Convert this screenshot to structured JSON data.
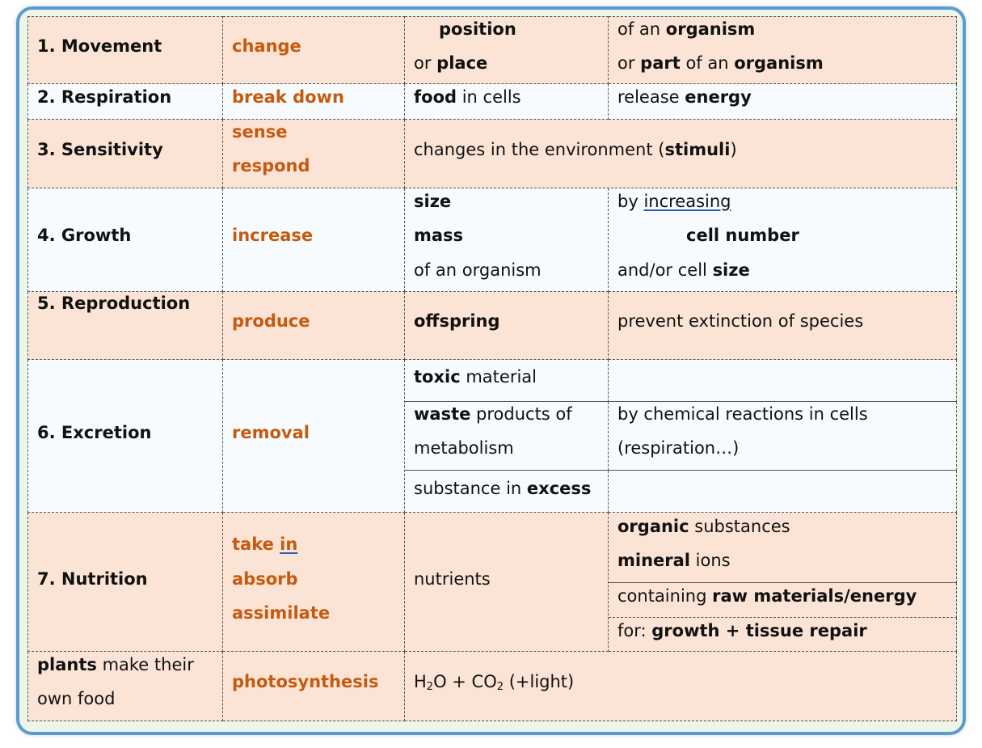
{
  "rows": [
    {
      "name": "1. Movement",
      "verb": "change",
      "c3_l1": "position",
      "c3_l2_pre": "or ",
      "c3_l2_b": "place",
      "c4_l1_pre": "of an ",
      "c4_l1_b": "organism",
      "c4_l2_pre": "or ",
      "c4_l2_b1": "part",
      "c4_l2_mid": " of an ",
      "c4_l2_b2": "organism"
    },
    {
      "name": "2. Respiration",
      "verb": "break down",
      "c3_b": "food",
      "c3_rest": " in cells",
      "c4_pre": "release ",
      "c4_b": "energy"
    },
    {
      "name": "3. Sensitivity",
      "verb1": "sense",
      "verb2": "respond",
      "c3_pre": "changes in the environment (",
      "c3_b": "stimuli",
      "c3_post": ")"
    },
    {
      "name": "4. Growth",
      "verb": "increase",
      "c3_l1": "size",
      "c3_l2": "mass",
      "c3_l3": "of an organism",
      "c4_l1_pre": "by ",
      "c4_l1_u": "increasing",
      "c4_l2": "cell number",
      "c4_l3_pre": "and/or cell ",
      "c4_l3_b": "size"
    },
    {
      "name": "5. Reproduction",
      "verb": "produce",
      "c3": "offspring",
      "c4": "prevent extinction of species"
    },
    {
      "name": "6. Excretion",
      "verb": "removal",
      "s1_b": "toxic",
      "s1_rest": " material",
      "s2_b": "waste",
      "s2_rest": " products of",
      "s2_l2": "metabolism",
      "s2_c4_l1": "by chemical reactions in cells",
      "s2_c4_l2": "(respiration…)",
      "s3_pre": "substance in ",
      "s3_b": "excess"
    },
    {
      "name": "7. Nutrition",
      "verb1_pre": "take ",
      "verb1_u": "in",
      "verb2": "absorb",
      "verb3": "assimilate",
      "c3": "nutrients",
      "s1_l1_b": "organic",
      "s1_l1_rest": " substances",
      "s1_l2_b": "mineral",
      "s1_l2_rest": " ions",
      "s2_pre": "containing ",
      "s2_b": "raw materials/energy",
      "s3_pre": "for: ",
      "s3_b": "growth + tissue repair"
    },
    {
      "l1_b": "plants",
      "l1_rest": " make their",
      "l2": "own food",
      "verb": "photosynthesis",
      "eq_h": "H",
      "eq_sub1": "2",
      "eq_mid": "O + CO",
      "eq_sub2": "2",
      "eq_post": " (+light)"
    }
  ],
  "colors": {
    "frame": "#5b9bd5",
    "pink": "#fbe4d6",
    "verb": "#c55a11"
  }
}
